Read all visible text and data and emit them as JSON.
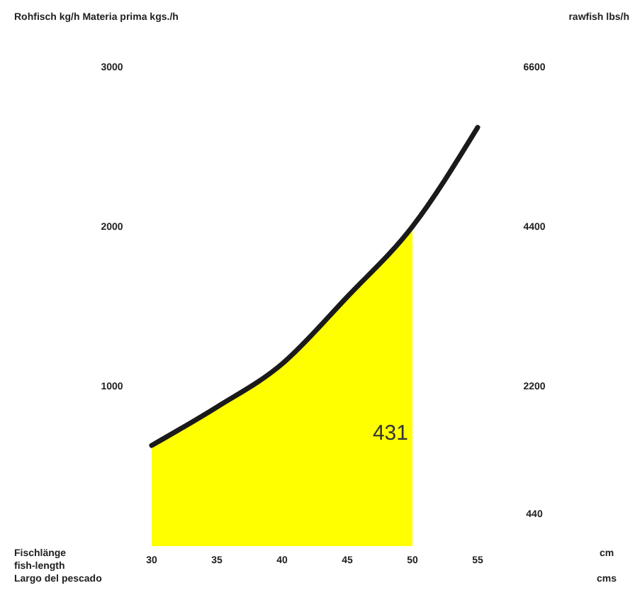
{
  "chart_data": {
    "type": "line",
    "ylabel": "Rohfisch kg/h   Materia prima kgs./h",
    "y2label": "rawfish lbs/h",
    "xlabel": "Fischlänge\nfish-length\nLargo del pescado",
    "xlim": [
      30,
      55
    ],
    "xticks": [
      30,
      35,
      40,
      45,
      50,
      55
    ],
    "ylim": [
      0,
      3000
    ],
    "yticks": [
      1000,
      2000,
      3000
    ],
    "y2lim": [
      0,
      6600
    ],
    "y2ticks": [
      440,
      2200,
      4400,
      6600
    ],
    "series": [
      {
        "type": "area",
        "color": "#ffff00",
        "x": [
          30,
          35,
          40,
          45,
          50
        ],
        "values": [
          630,
          870,
          1140,
          1560,
          2000
        ]
      },
      {
        "color": "#1a1a1a",
        "x": [
          30,
          35,
          40,
          45,
          50,
          55
        ],
        "values": [
          630,
          870,
          1140,
          1560,
          2000,
          2620
        ]
      }
    ],
    "annotations": [
      "431",
      "cm",
      "cms"
    ],
    "grid": false
  }
}
